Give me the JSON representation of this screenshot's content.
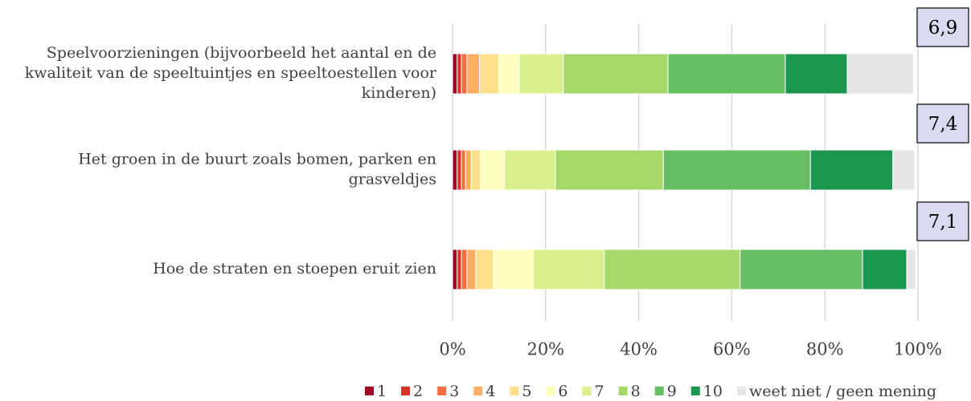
{
  "chart_data": {
    "type": "stacked_barh",
    "categories": [
      "Speelvoorzieningen (bijvoorbeeld het aantal en de kwaliteit van de speeltuintjes en speeltoestellen voor kinderen)",
      "Het groen in de buurt zoals bomen, parken en grasveldjes",
      "Hoe de straten en stoepen eruit zien"
    ],
    "series": [
      {
        "name": "1",
        "color": "#a50026",
        "values": [
          1.0,
          1.0,
          1.0
        ]
      },
      {
        "name": "2",
        "color": "#d73027",
        "values": [
          0.9,
          0.9,
          0.9
        ]
      },
      {
        "name": "3",
        "color": "#f46d43",
        "values": [
          1.2,
          0.9,
          1.2
        ]
      },
      {
        "name": "4",
        "color": "#fdae61",
        "values": [
          2.7,
          1.2,
          1.9
        ]
      },
      {
        "name": "5",
        "color": "#fee08b",
        "values": [
          4.2,
          2.0,
          3.8
        ]
      },
      {
        "name": "6",
        "color": "#ffffbf",
        "values": [
          4.3,
          5.2,
          8.6
        ]
      },
      {
        "name": "7",
        "color": "#d9ef8b",
        "values": [
          9.5,
          10.9,
          15.2
        ]
      },
      {
        "name": "8",
        "color": "#a6d96a",
        "values": [
          22.5,
          23.2,
          29.2
        ]
      },
      {
        "name": "9",
        "color": "#66bd63",
        "values": [
          25.2,
          31.6,
          26.3
        ]
      },
      {
        "name": "10",
        "color": "#1a9850",
        "values": [
          13.3,
          17.7,
          9.5
        ]
      },
      {
        "name": "weet niet / geen mening",
        "color": "#e6e6e6",
        "values": [
          14.2,
          4.7,
          1.9
        ]
      }
    ],
    "annotations": [
      "6,9",
      "7,4",
      "7,1"
    ],
    "xlim": [
      0,
      100
    ],
    "xticks": [
      {
        "value": 0,
        "label": "0%"
      },
      {
        "value": 20,
        "label": "20%"
      },
      {
        "value": 40,
        "label": "40%"
      },
      {
        "value": 60,
        "label": "60%"
      },
      {
        "value": 80,
        "label": "80%"
      },
      {
        "value": 100,
        "label": "100%"
      }
    ],
    "grid": true,
    "legend": "bottom"
  }
}
